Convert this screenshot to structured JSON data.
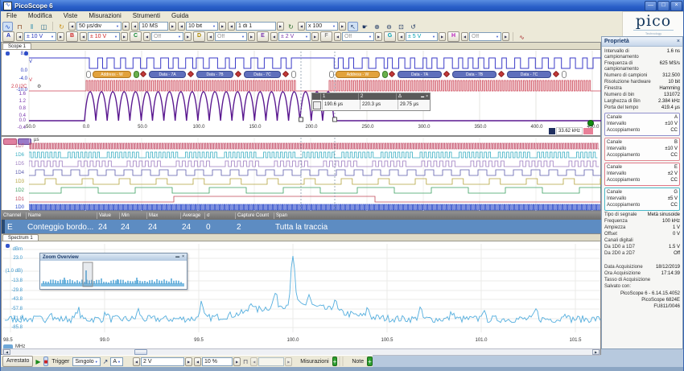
{
  "titlebar": {
    "title": "PicoScope 6"
  },
  "menu": {
    "items": [
      "File",
      "Modifica",
      "Viste",
      "Misurazioni",
      "Strumenti",
      "Guida"
    ]
  },
  "logo": {
    "brand": "pico",
    "sub": "Technology"
  },
  "icons": {
    "app": "∿",
    "minimize": "—",
    "maximize": "□",
    "close": "×",
    "scope_view": "∿",
    "square_view": "⊓",
    "spectrum_view": "‖",
    "xy_view": "◫",
    "refresh": "↻",
    "pointer": "↖",
    "hand": "☛",
    "zoom_in": "⊕",
    "zoom_out": "⊖",
    "zoom_window": "⊡",
    "zoom_undo": "↺",
    "awg": "∿",
    "play": "▶",
    "stop": "■",
    "trigger_marker": "↗",
    "pulse_width": "⊓",
    "add": "+",
    "gear": "⚙",
    "prev": "◀",
    "next": "▶",
    "dropdown": "▼",
    "overview_min": "▬",
    "overview_close": "×",
    "panel_close": "×"
  },
  "toolbar": {
    "timebase": "50 µs/div",
    "samples": "10 MS",
    "resolution": "10 bit",
    "buffer": "1 di 1",
    "zoom": "x 100"
  },
  "channels": [
    {
      "name": "A",
      "range": "± 10 V",
      "color": "#2233bb"
    },
    {
      "name": "B",
      "range": "± 10 V",
      "color": "#cc2222"
    },
    {
      "name": "C",
      "range": "Off",
      "color": "#118833"
    },
    {
      "name": "D",
      "range": "Off",
      "color": "#aa8800"
    },
    {
      "name": "E",
      "range": "± 2 V",
      "color": "#7733aa"
    },
    {
      "name": "F",
      "range": "Off",
      "color": "#888888"
    },
    {
      "name": "G",
      "range": "± 5 V",
      "color": "#00a0b0"
    },
    {
      "name": "H",
      "range": "Off",
      "color": "#bb22bb"
    }
  ],
  "scope": {
    "tab": "Scope 1",
    "axis_a_labels": [
      "8.0",
      "V",
      "0.0",
      "-4.0",
      "-10.0"
    ],
    "axis_b_labels": [
      "V",
      "2.0 I2C"
    ],
    "axis_e_labels": [
      "1.6",
      "1.2",
      "0.8",
      "0.4",
      "0.0",
      "-0.4"
    ],
    "x_ticks": [
      "-50.0",
      "0.0",
      "50.0",
      "100.0",
      "150.0",
      "200.0",
      "250.0",
      "300.0",
      "350.0",
      "400.0",
      "450.0"
    ],
    "x_unit": "µs",
    "freq_badge": "33.62 kHz",
    "ruler": {
      "headers": [
        "1",
        "2",
        "Δ"
      ],
      "values": [
        "190.6 µs",
        "220.3 µs",
        "29.75 µs"
      ]
    },
    "decode": {
      "address_label": "Address - W",
      "data_labels": [
        "Data - 7A",
        "Data - 7B",
        "Data - 7C"
      ]
    }
  },
  "digital": {
    "labels": [
      "1D7",
      "1D6",
      "1D5",
      "1D4",
      "1D3",
      "1D2",
      "1D1",
      "1D0"
    ],
    "colors": [
      "#c4506a",
      "#38aec2",
      "#9d7cc0",
      "#5d5dae",
      "#b3a23c",
      "#3aa060",
      "#c04858",
      "#2847c8"
    ],
    "x_unit": "µs"
  },
  "measurements": {
    "headers": [
      "Channel",
      "Name",
      "Value",
      "Min",
      "Max",
      "Average",
      "σ",
      "Capture Count",
      "Span"
    ],
    "row": {
      "channel": "E",
      "name": "Conteggio bordo...",
      "value": "24",
      "min": "24",
      "max": "24",
      "average": "24",
      "sigma": "0",
      "capture_count": "2",
      "span": "Tutta la traccia"
    }
  },
  "spectrum": {
    "tab": "Spectrum 1",
    "y_unit": "dBm",
    "y_labels": [
      "23.0",
      "(1.0 dB)",
      "-13.8",
      "-29.8",
      "-43.8",
      "-57.8",
      "-71.8",
      "-85.8"
    ],
    "x_ticks": [
      "98.5",
      "99.0",
      "99.5",
      "100.0",
      "100.5",
      "101.0",
      "101.5"
    ],
    "x_unit": "MHz",
    "overview_title": "Zoom Overview"
  },
  "bottombar": {
    "run_state": "Arrestato",
    "trigger_label": "Trigger",
    "trigger_mode": "Singolo",
    "trigger_source": "A",
    "trigger_level": "2 V",
    "pretrigger": "10 %",
    "measurements_label": "Misurazioni",
    "notes_label": "Note"
  },
  "properties": {
    "title": "Proprietà",
    "info": [
      {
        "label": "Intervallo di campionamento",
        "value": "1.6 ns"
      },
      {
        "label": "Frequenza di campionamento",
        "value": "625 MS/s"
      },
      {
        "label": "Numero di campioni",
        "value": "312.500"
      },
      {
        "label": "Risoluzione hardware",
        "value": "10 bit"
      },
      {
        "label": "Finestra",
        "value": "Hamming"
      },
      {
        "label": "Numero di bin",
        "value": "131072"
      },
      {
        "label": "Larghezza di Bin",
        "value": "2.384 kHz"
      },
      {
        "label": "Porta del tempo",
        "value": "419.4 µs"
      }
    ],
    "channel_boxes": [
      {
        "channel_label": "Canale",
        "range_label": "Intervallo",
        "coupling_label": "Accoppiamento",
        "channel": "A",
        "range": "±10 V",
        "coupling": "CC",
        "color": "#9090cc"
      },
      {
        "channel_label": "Canale",
        "range_label": "Intervallo",
        "coupling_label": "Accoppiamento",
        "channel": "B",
        "range": "±10 V",
        "coupling": "CC",
        "color": "#e08890"
      },
      {
        "channel_label": "Canale",
        "range_label": "Intervallo",
        "coupling_label": "Accoppiamento",
        "channel": "E",
        "range": "±2 V",
        "coupling": "CC",
        "color": "#e07888"
      },
      {
        "channel_label": "Canale",
        "range_label": "Intervallo",
        "coupling_label": "Accoppiamento",
        "channel": "G",
        "range": "±5 V",
        "coupling": "CC",
        "color": "#48b8c8"
      }
    ],
    "signal": [
      {
        "label": "Tipo di segnale",
        "value": "Metà sinusoide"
      },
      {
        "label": "Frequenza",
        "value": "100 kHz"
      },
      {
        "label": "Ampiezza",
        "value": "1 V"
      },
      {
        "label": "Offset",
        "value": "0 V"
      }
    ],
    "digital_heading": "Canali digitali",
    "digital_rows": [
      {
        "label": "Da 1D0 a 1D7",
        "value": "1.5 V"
      },
      {
        "label": "Da 2D0 a 2D7",
        "value": "Off"
      }
    ],
    "acquisition": [
      {
        "label": "Data Acquisizione",
        "value": "18/12/2019"
      },
      {
        "label": "Ora Acquisizione",
        "value": "17:14:39"
      },
      {
        "label": "Tasso di Acquisizione",
        "value": ""
      },
      {
        "label": "Salvato con:",
        "value": ""
      }
    ],
    "saved_with": [
      "PicoScope 6 - 6.14.15.4052",
      "PicoScope 6824E",
      "FU811/0046"
    ]
  }
}
